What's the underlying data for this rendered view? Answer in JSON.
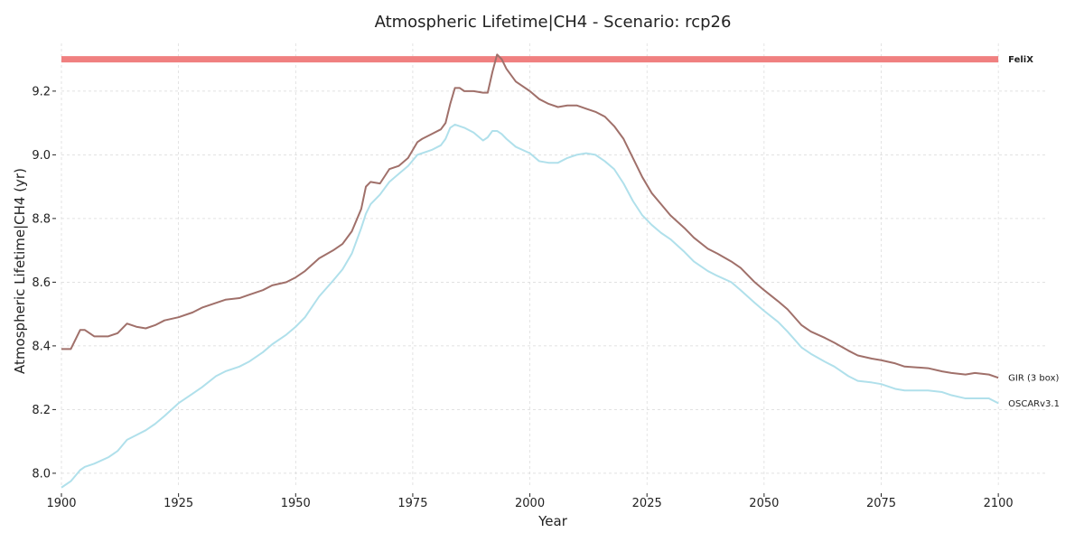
{
  "chart_data": {
    "type": "line",
    "title": "Atmospheric Lifetime|CH4 - Scenario: rcp26",
    "xlabel": "Year",
    "ylabel": "Atmospheric Lifetime|CH4 (yr)",
    "xlim": [
      1900,
      2110
    ],
    "ylim": [
      7.96,
      9.35
    ],
    "xticks": [
      1900,
      1925,
      1950,
      1975,
      2000,
      2025,
      2050,
      2075,
      2100
    ],
    "yticks": [
      8.0,
      8.2,
      8.4,
      8.6,
      8.8,
      9.0,
      9.2
    ],
    "grid": true,
    "legend": "labels at right end of each series",
    "series": [
      {
        "name": "FeliX",
        "color": "#f08080",
        "style": "thick-constant",
        "label_bold": true,
        "x": [
          1900,
          2100
        ],
        "y": [
          9.3,
          9.3
        ]
      },
      {
        "name": "GIR (3 box)",
        "color": "#a0706a",
        "label_bold": false,
        "x": [
          1900,
          1902,
          1904,
          1905,
          1907,
          1910,
          1912,
          1914,
          1916,
          1918,
          1920,
          1922,
          1925,
          1928,
          1930,
          1933,
          1935,
          1938,
          1940,
          1943,
          1945,
          1948,
          1950,
          1952,
          1955,
          1958,
          1960,
          1962,
          1964,
          1965,
          1966,
          1968,
          1970,
          1972,
          1974,
          1976,
          1977,
          1979,
          1981,
          1982,
          1983,
          1984,
          1985,
          1986,
          1988,
          1990,
          1991,
          1992,
          1993,
          1994,
          1995,
          1997,
          2000,
          2002,
          2004,
          2006,
          2008,
          2010,
          2012,
          2014,
          2016,
          2018,
          2020,
          2022,
          2024,
          2026,
          2028,
          2030,
          2033,
          2035,
          2038,
          2040,
          2043,
          2045,
          2048,
          2050,
          2053,
          2055,
          2058,
          2060,
          2063,
          2065,
          2068,
          2070,
          2073,
          2075,
          2078,
          2080,
          2085,
          2088,
          2090,
          2093,
          2095,
          2098,
          2100
        ],
        "y": [
          8.39,
          8.39,
          8.45,
          8.45,
          8.43,
          8.43,
          8.44,
          8.47,
          8.46,
          8.455,
          8.465,
          8.48,
          8.49,
          8.505,
          8.52,
          8.535,
          8.545,
          8.55,
          8.56,
          8.575,
          8.59,
          8.6,
          8.615,
          8.635,
          8.675,
          8.7,
          8.72,
          8.76,
          8.83,
          8.9,
          8.915,
          8.91,
          8.955,
          8.965,
          8.99,
          9.04,
          9.05,
          9.065,
          9.08,
          9.1,
          9.16,
          9.21,
          9.21,
          9.2,
          9.2,
          9.195,
          9.195,
          9.26,
          9.315,
          9.3,
          9.27,
          9.23,
          9.2,
          9.175,
          9.16,
          9.15,
          9.155,
          9.155,
          9.145,
          9.135,
          9.12,
          9.09,
          9.05,
          8.99,
          8.93,
          8.88,
          8.845,
          8.81,
          8.77,
          8.74,
          8.705,
          8.69,
          8.665,
          8.645,
          8.6,
          8.575,
          8.54,
          8.515,
          8.465,
          8.445,
          8.425,
          8.41,
          8.385,
          8.37,
          8.36,
          8.355,
          8.345,
          8.335,
          8.33,
          8.32,
          8.315,
          8.31,
          8.315,
          8.31,
          8.3
        ]
      },
      {
        "name": "OSCARv3.1",
        "color": "#b0e0eb",
        "label_bold": false,
        "x": [
          1900,
          1902,
          1904,
          1905,
          1907,
          1910,
          1912,
          1914,
          1916,
          1918,
          1920,
          1922,
          1925,
          1928,
          1930,
          1933,
          1935,
          1938,
          1940,
          1943,
          1945,
          1948,
          1950,
          1952,
          1955,
          1958,
          1960,
          1962,
          1964,
          1965,
          1966,
          1968,
          1970,
          1972,
          1974,
          1976,
          1977,
          1979,
          1981,
          1982,
          1983,
          1984,
          1985,
          1986,
          1988,
          1990,
          1991,
          1992,
          1993,
          1994,
          1995,
          1997,
          2000,
          2002,
          2004,
          2006,
          2008,
          2010,
          2012,
          2014,
          2016,
          2018,
          2020,
          2022,
          2024,
          2026,
          2028,
          2030,
          2033,
          2035,
          2038,
          2040,
          2043,
          2045,
          2048,
          2050,
          2053,
          2055,
          2058,
          2060,
          2063,
          2065,
          2068,
          2070,
          2073,
          2075,
          2078,
          2080,
          2085,
          2088,
          2090,
          2093,
          2095,
          2098,
          2100
        ],
        "y": [
          7.955,
          7.975,
          8.01,
          8.02,
          8.03,
          8.05,
          8.07,
          8.105,
          8.12,
          8.135,
          8.155,
          8.18,
          8.22,
          8.25,
          8.27,
          8.305,
          8.32,
          8.335,
          8.35,
          8.38,
          8.405,
          8.435,
          8.46,
          8.49,
          8.555,
          8.605,
          8.64,
          8.69,
          8.77,
          8.815,
          8.845,
          8.875,
          8.915,
          8.94,
          8.965,
          9.0,
          9.005,
          9.015,
          9.03,
          9.05,
          9.085,
          9.095,
          9.09,
          9.085,
          9.07,
          9.045,
          9.055,
          9.075,
          9.075,
          9.065,
          9.05,
          9.025,
          9.005,
          8.98,
          8.975,
          8.975,
          8.99,
          9.0,
          9.005,
          9.0,
          8.98,
          8.955,
          8.91,
          8.855,
          8.81,
          8.78,
          8.755,
          8.735,
          8.695,
          8.665,
          8.635,
          8.62,
          8.6,
          8.575,
          8.535,
          8.51,
          8.475,
          8.445,
          8.395,
          8.375,
          8.35,
          8.335,
          8.305,
          8.29,
          8.285,
          8.28,
          8.265,
          8.26,
          8.26,
          8.255,
          8.245,
          8.235,
          8.235,
          8.235,
          8.22
        ]
      }
    ]
  }
}
